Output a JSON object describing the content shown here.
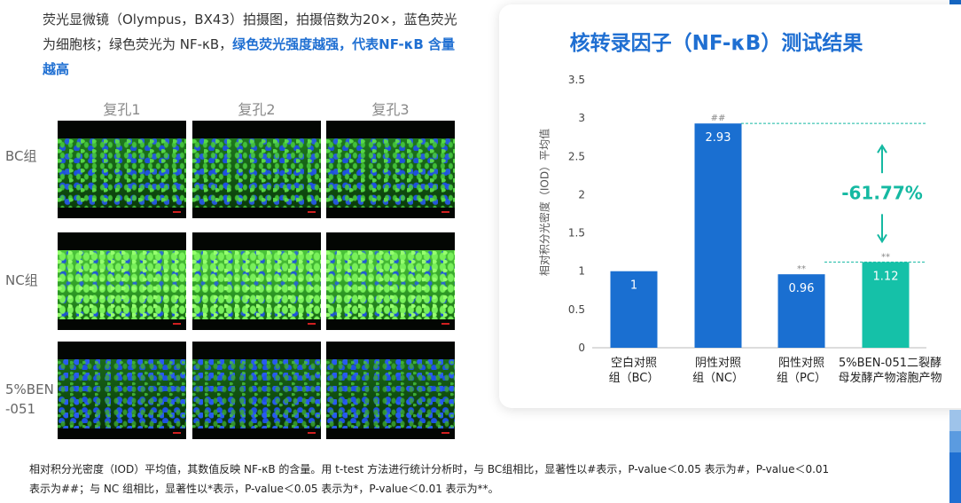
{
  "description": {
    "text": "荧光显微镜（Olympus，BX43）拍摄图，拍摄倍数为20×，蓝色荧光为细胞核；绿色荧光为 NF-κB，",
    "highlight": "绿色荧光强度越强，代表NF-κB 含量越高"
  },
  "micrographs": {
    "column_headers": [
      "复孔1",
      "复孔2",
      "复孔3"
    ],
    "rows": [
      {
        "label": "BC组"
      },
      {
        "label": "NC组"
      },
      {
        "label": "5%BEN-051"
      }
    ]
  },
  "chart_card": {
    "title": "核转录因子（NF-κB）测试结果"
  },
  "chart_data": {
    "type": "bar",
    "title": "核转录因子（NF-κB）测试结果",
    "ylabel": "相对积分光密度（IOD）平均值",
    "ylim": [
      0,
      3.5
    ],
    "yticks": [
      "0",
      "0.5",
      "1",
      "1.5",
      "2",
      "2.5",
      "3",
      "3.5"
    ],
    "categories": [
      [
        "空白对照",
        "组（BC）"
      ],
      [
        "阴性对照",
        "组（NC）"
      ],
      [
        "阳性对照",
        "组（PC）"
      ],
      [
        "5%BEN-051二裂酵",
        "母发酵产物溶胞产物"
      ]
    ],
    "values": [
      1,
      2.93,
      0.96,
      1.12
    ],
    "data_labels": [
      "1",
      "2.93",
      "0.96",
      "1.12"
    ],
    "significance": [
      "",
      "##",
      "**",
      "**"
    ],
    "bar_colors": [
      "#1a6fd1",
      "#1a6fd1",
      "#1a6fd1",
      "#15c1a8"
    ],
    "reference_lines": [
      2.93,
      1.12
    ],
    "annotation": "-61.77%",
    "annotation_color": "#15b9a2",
    "grid": false
  },
  "footnote": {
    "line1": "相对积分光密度（IOD）平均值，其数值反映 NF-κB 的含量。用 t-test 方法进行统计分析时，与 BC组相比，显著性以#表示，P-value＜0.05 表示为#，P-value＜0.01",
    "line2": "表示为##；与 NC 组相比，显著性以*表示，P-value＜0.05 表示为*，P-value＜0.01 表示为**。"
  },
  "colors": {
    "accent": "#1f6fd2",
    "teal": "#15c1a8"
  }
}
